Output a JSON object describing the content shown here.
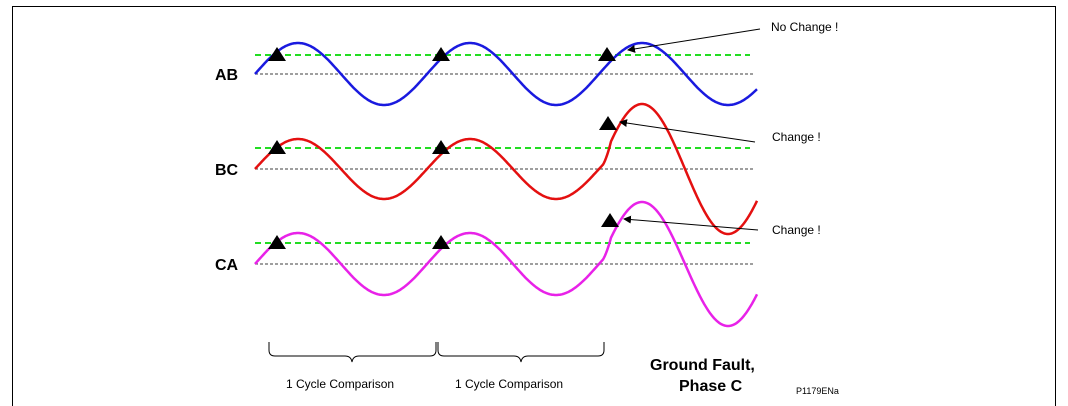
{
  "phases": [
    {
      "label": "AB",
      "color": "#1a1adf"
    },
    {
      "label": "BC",
      "color": "#e41010"
    },
    {
      "label": "CA",
      "color": "#e822e8"
    }
  ],
  "threshold_color": "#22dd22",
  "annotations": {
    "ab_note": "No Change !",
    "bc_note": "Change !",
    "ca_note": "Change !"
  },
  "comparisons": [
    {
      "label": "1 Cycle Comparison"
    },
    {
      "label": "1 Cycle Comparison"
    }
  ],
  "fault": {
    "line1": "Ground Fault,",
    "line2": "Phase C"
  },
  "figure_ref": "P1179ENa"
}
